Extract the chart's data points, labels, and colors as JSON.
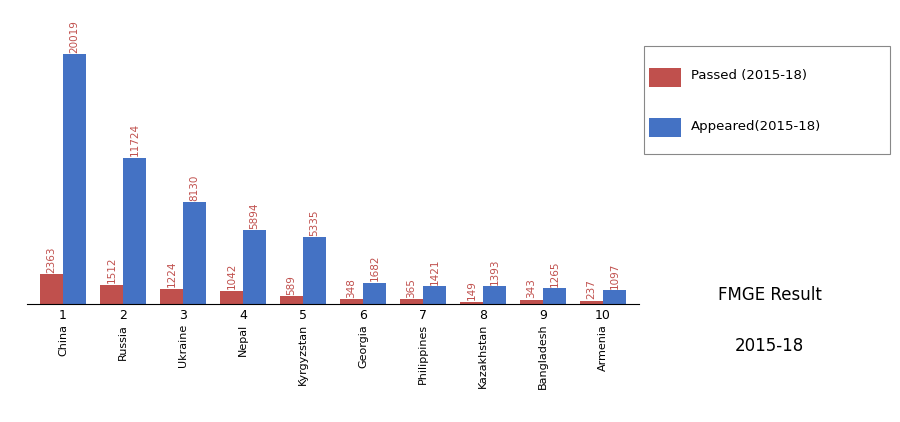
{
  "categories": [
    "China",
    "Russia",
    "Ukraine",
    "Nepal",
    "Kyrgyzstan",
    "Georgia",
    "Philippines",
    "Kazakhstan",
    "Bangladesh",
    "Armenia"
  ],
  "x_labels": [
    "1",
    "2",
    "3",
    "4",
    "5",
    "6",
    "7",
    "8",
    "9",
    "10"
  ],
  "passed": [
    2363,
    1512,
    1224,
    1042,
    589,
    348,
    365,
    149,
    343,
    237
  ],
  "appeared": [
    20019,
    11724,
    8130,
    5894,
    5335,
    1682,
    1421,
    1393,
    1265,
    1097
  ],
  "passed_color": "#C0504D",
  "appeared_color": "#4472C4",
  "passed_label": "Passed (2015-18)",
  "appeared_label": "Appeared(2015-18)",
  "annotation_color": "#C0504D",
  "ylim": [
    0,
    23000
  ],
  "bar_width": 0.38,
  "bg_color": "#FFFFFF",
  "grid_color": "#BBBBBB",
  "font_size_annotation": 7.5,
  "font_size_legend": 9.5,
  "font_size_tick": 9,
  "font_size_country": 8,
  "font_size_fmge": 12
}
